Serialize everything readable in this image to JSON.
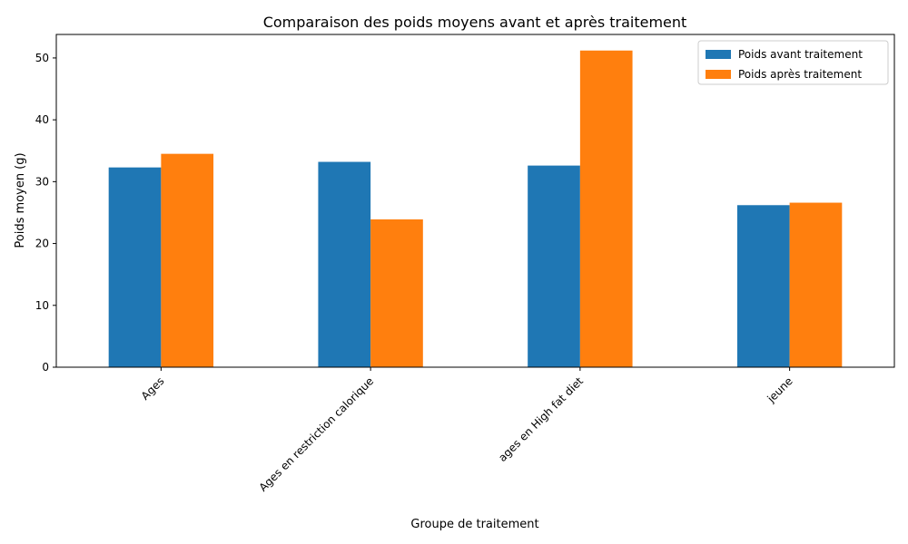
{
  "chart_data": {
    "type": "bar",
    "title": "Comparaison des poids moyens avant et après traitement",
    "xlabel": "Groupe de traitement",
    "ylabel": "Poids moyen (g)",
    "categories": [
      "Ages",
      "Ages en restriction calorique",
      "ages en High fat diet",
      "jeune"
    ],
    "series": [
      {
        "name": "Poids avant traitement",
        "color": "#1f77b4",
        "values": [
          32.3,
          33.2,
          32.6,
          26.2
        ]
      },
      {
        "name": "Poids après traitement",
        "color": "#ff7f0e",
        "values": [
          34.5,
          23.9,
          51.2,
          26.6
        ]
      }
    ],
    "ylim": [
      0,
      53.8
    ],
    "yticks": [
      0,
      10,
      20,
      30,
      40,
      50
    ],
    "grid": false,
    "legend_position": "top-right",
    "xtick_rotation_deg": 45
  }
}
